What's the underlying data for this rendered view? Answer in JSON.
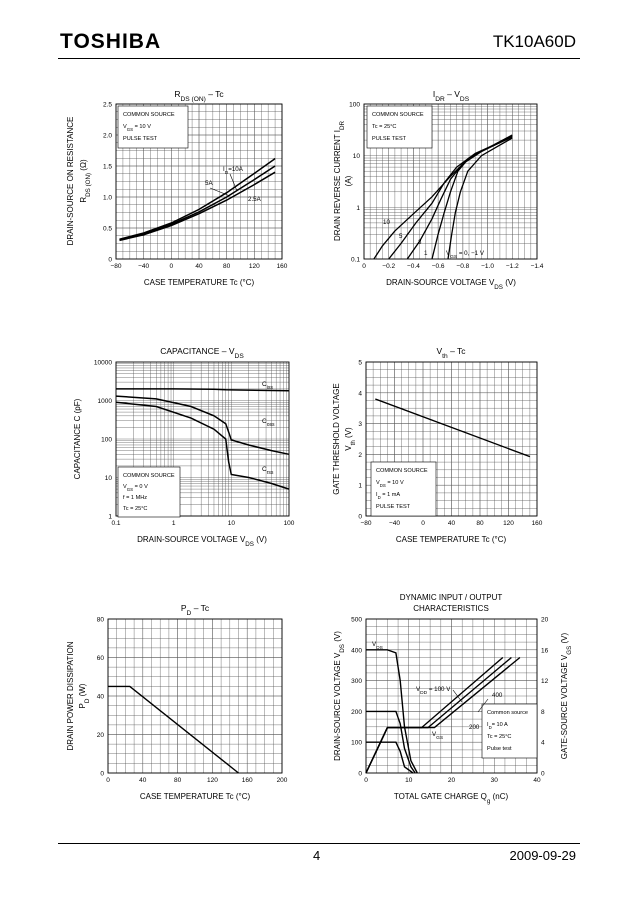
{
  "header": {
    "logo": "TOSHIBA",
    "part_number": "TK10A60D"
  },
  "footer": {
    "page": "4",
    "date": "2009-09-29"
  },
  "chart_data": [
    {
      "id": "rds",
      "type": "line",
      "title": "R<sub>DS (ON)</sub> – Tc",
      "ylabel": "DRAIN-SOURCE ON RESISTANCE",
      "ylabel2": "R<sub>DS (ON)</sub>   (Ω)",
      "xlabel": "CASE TEMPERATURE   Tc   (°C)",
      "xlim": [
        -80,
        160
      ],
      "ylim": [
        0,
        2.5
      ],
      "xticks": [
        -80,
        -40,
        0,
        40,
        80,
        120,
        160
      ],
      "xticklabels": [
        "−80",
        "−40",
        "0",
        "40",
        "80",
        "120",
        "160"
      ],
      "yticks": [
        0,
        0.5,
        1.0,
        1.5,
        2.0,
        2.5
      ],
      "yticklabels": [
        "0",
        "0.5",
        "1.0",
        "1.5",
        "2.0",
        "2.5"
      ],
      "legend": [
        "COMMON SOURCE",
        "V<sub>GS</sub> = 10 V",
        "PULSE TEST"
      ],
      "annotations": [
        "I<sub>D</sub>=10A",
        "5A",
        "2.5A"
      ],
      "series": [
        {
          "name": "10A",
          "x": [
            -75,
            -40,
            0,
            40,
            80,
            120,
            150
          ],
          "y": [
            0.32,
            0.42,
            0.58,
            0.8,
            1.07,
            1.38,
            1.62
          ]
        },
        {
          "name": "5A",
          "x": [
            -75,
            -40,
            0,
            40,
            80,
            120,
            150
          ],
          "y": [
            0.31,
            0.4,
            0.56,
            0.76,
            1.0,
            1.28,
            1.5
          ]
        },
        {
          "name": "2.5A",
          "x": [
            -75,
            -40,
            0,
            40,
            80,
            120,
            150
          ],
          "y": [
            0.3,
            0.39,
            0.54,
            0.73,
            0.95,
            1.2,
            1.4
          ]
        }
      ]
    },
    {
      "id": "idr",
      "type": "line",
      "title": "I<sub>DR</sub> – V<sub>DS</sub>",
      "ylabel": "DRAIN REVERSE CURRENT   I<sub>DR</sub>",
      "ylabel2": "(A)",
      "xlabel": "DRAIN-SOURCE VOLTAGE    V<sub>DS</sub>   (V)",
      "xlim": [
        0,
        -1.4
      ],
      "ylim": [
        0.1,
        100
      ],
      "ylog": true,
      "xticks": [
        0,
        -0.2,
        -0.4,
        -0.6,
        -0.8,
        -1.0,
        -1.2,
        -1.4
      ],
      "xticklabels": [
        "0",
        "−0.2",
        "−0.4",
        "−0.6",
        "−0.8",
        "−1.0",
        "−1.2",
        "−1.4"
      ],
      "yticks": [
        0.1,
        1,
        10,
        100
      ],
      "yticklabels": [
        "0.1",
        "1",
        "10",
        "100"
      ],
      "legend": [
        "COMMON SOURCE",
        "Tc = 25°C",
        "PULSE TEST"
      ],
      "annotations": [
        "10",
        "5",
        "3",
        "1",
        "V<sub>GS</sub> = 0, −1 V"
      ],
      "series": [
        {
          "name": "10",
          "x": [
            -0.08,
            -0.15,
            -0.25,
            -0.4,
            -0.55,
            -0.7,
            -0.85,
            -1.0,
            -1.2
          ],
          "y": [
            0.1,
            0.18,
            0.35,
            0.75,
            1.6,
            4.0,
            9.0,
            14,
            25
          ]
        },
        {
          "name": "5",
          "x": [
            -0.2,
            -0.3,
            -0.42,
            -0.55,
            -0.65,
            -0.75,
            -0.9,
            -1.05,
            -1.2
          ],
          "y": [
            0.1,
            0.2,
            0.5,
            1.2,
            3.0,
            6.0,
            11,
            16,
            25
          ]
        },
        {
          "name": "3",
          "x": [
            -0.35,
            -0.45,
            -0.55,
            -0.62,
            -0.7,
            -0.8,
            -0.95,
            -1.1,
            -1.2
          ],
          "y": [
            0.1,
            0.22,
            0.6,
            1.4,
            3.5,
            7,
            12,
            18,
            24
          ]
        },
        {
          "name": "1",
          "x": [
            -0.55,
            -0.6,
            -0.65,
            -0.7,
            -0.76,
            -0.85,
            -1.0,
            -1.2
          ],
          "y": [
            0.1,
            0.3,
            0.8,
            2.0,
            5.0,
            9.0,
            14,
            23
          ]
        },
        {
          "name": "0, -1 V",
          "x": [
            -0.68,
            -0.71,
            -0.74,
            -0.78,
            -0.84,
            -0.95,
            -1.1,
            -1.2
          ],
          "y": [
            0.1,
            0.3,
            0.8,
            2.0,
            5.0,
            10,
            16,
            22
          ]
        }
      ]
    },
    {
      "id": "cap",
      "type": "line",
      "title": "CAPACITANCE – V<sub>DS</sub>",
      "ylabel": "CAPACITANCE    C    (pF)",
      "xlabel": "DRAIN-SOURCE VOLTAGE    V<sub>DS</sub>    (V)",
      "xlim": [
        0.1,
        100
      ],
      "ylim": [
        1,
        10000
      ],
      "xlog": true,
      "ylog": true,
      "xticks": [
        0.1,
        1,
        10,
        100
      ],
      "xticklabels": [
        "0.1",
        "1",
        "10",
        "100"
      ],
      "yticks": [
        1,
        10,
        100,
        1000,
        10000
      ],
      "yticklabels": [
        "1",
        "10",
        "100",
        "1000",
        "10000"
      ],
      "legend": [
        "COMMON SOURCE",
        "V<sub>GS</sub> = 0 V",
        "f = 1 MHz",
        "Tc = 25°C"
      ],
      "series": [
        {
          "name": "C<sub>iss</sub>",
          "x": [
            0.1,
            1,
            5,
            8,
            10,
            100
          ],
          "y": [
            2000,
            2000,
            1950,
            1900,
            1880,
            1800
          ]
        },
        {
          "name": "C<sub>oss</sub>",
          "x": [
            0.1,
            0.5,
            2,
            5,
            8,
            9,
            10,
            20,
            50,
            100
          ],
          "y": [
            1300,
            1100,
            700,
            400,
            250,
            150,
            95,
            70,
            50,
            40
          ]
        },
        {
          "name": "C<sub>rss</sub>",
          "x": [
            0.1,
            0.5,
            2,
            5,
            8,
            9,
            10,
            20,
            50,
            100
          ],
          "y": [
            900,
            700,
            350,
            180,
            100,
            25,
            12,
            10,
            7,
            5
          ]
        }
      ]
    },
    {
      "id": "vth",
      "type": "line",
      "title": "V<sub>th</sub> – Tc",
      "ylabel": "GATE THRESHOLD VOLTAGE",
      "ylabel2": "V<sub>th</sub>   (V)",
      "xlabel": "CASE TEMPERATURE   Tc   (°C)",
      "xlim": [
        -80,
        160
      ],
      "ylim": [
        0,
        5
      ],
      "xticks": [
        -80,
        -40,
        0,
        40,
        80,
        120,
        160
      ],
      "xticklabels": [
        "−80",
        "−40",
        "0",
        "40",
        "80",
        "120",
        "160"
      ],
      "yticks": [
        0,
        1,
        2,
        3,
        4,
        5
      ],
      "yticklabels": [
        "0",
        "1",
        "2",
        "3",
        "4",
        "5"
      ],
      "legend": [
        "COMMON SOURCE",
        "V<sub>DS</sub> = 10 V",
        "I<sub>D</sub> = 1 mA",
        "PULSE TEST"
      ],
      "series": [
        {
          "name": "Vth",
          "x": [
            -67,
            150
          ],
          "y": [
            3.8,
            1.93
          ]
        }
      ]
    },
    {
      "id": "pd",
      "type": "line",
      "title": "P<sub>D</sub> – Tc",
      "ylabel": "DRAIN POWER DISSIPATION",
      "ylabel2": "P<sub>D</sub>   (W)",
      "xlabel": "CASE TEMPERATURE   Tc   (°C)",
      "xlim": [
        0,
        200
      ],
      "ylim": [
        0,
        80
      ],
      "xticks": [
        0,
        40,
        80,
        120,
        160,
        200
      ],
      "xticklabels": [
        "0",
        "40",
        "80",
        "120",
        "160",
        "200"
      ],
      "yticks": [
        0,
        20,
        40,
        60,
        80
      ],
      "yticklabels": [
        "0",
        "20",
        "40",
        "60",
        "80"
      ],
      "series": [
        {
          "name": "PD",
          "x": [
            0,
            25,
            150
          ],
          "y": [
            45,
            45,
            0
          ]
        }
      ]
    },
    {
      "id": "qg",
      "type": "line",
      "title": "DYNAMIC INPUT / OUTPUT",
      "title2": "CHARACTERISTICS",
      "ylabel": "DRAIN-SOURCE VOLTAGE    V<sub>DS</sub>    (V)",
      "ylabel_right": "GATE-SOURCE VOLTAGE    V<sub>GS</sub>    (V)",
      "xlabel": "TOTAL GATE CHARGE    Q<sub>g</sub>    (nC)",
      "xlim": [
        0,
        40
      ],
      "ylim": [
        0,
        500
      ],
      "ylim_right": [
        0,
        20
      ],
      "xticks": [
        0,
        10,
        20,
        30,
        40
      ],
      "xticklabels": [
        "0",
        "10",
        "20",
        "30",
        "40"
      ],
      "yticks": [
        0,
        100,
        200,
        300,
        400,
        500
      ],
      "yticklabels": [
        "0",
        "100",
        "200",
        "300",
        "400",
        "500"
      ],
      "yticks_right": [
        0,
        4,
        8,
        12,
        16,
        20
      ],
      "yticklabels_right": [
        "0",
        "4",
        "8",
        "12",
        "16",
        "20"
      ],
      "legend": [
        "Common source",
        "I<sub>D</sub>= 10 A",
        "Tc = 25°C",
        "Pulse test"
      ],
      "annotations": [
        "V<sub>DS</sub>",
        "V<sub>DD</sub> = 100 V",
        "400",
        "200",
        "V<sub>GS</sub>"
      ],
      "vds_series": [
        {
          "name": "100 V",
          "x": [
            0,
            7,
            8,
            9,
            11
          ],
          "y": [
            100,
            100,
            70,
            20,
            0
          ]
        },
        {
          "name": "200 V",
          "x": [
            0,
            7,
            8,
            9,
            10.5,
            11.5
          ],
          "y": [
            200,
            200,
            160,
            80,
            20,
            0
          ]
        },
        {
          "name": "400 V",
          "x": [
            0,
            5,
            7,
            8,
            9,
            10.5,
            12
          ],
          "y": [
            400,
            400,
            390,
            300,
            150,
            40,
            0
          ]
        }
      ],
      "vgs_series": [
        {
          "name": "100 V",
          "x": [
            0,
            5,
            13,
            32
          ],
          "y": [
            0,
            5.9,
            5.9,
            15
          ]
        },
        {
          "name": "200 V",
          "x": [
            0,
            5,
            14.5,
            34
          ],
          "y": [
            0,
            5.9,
            5.9,
            15
          ]
        },
        {
          "name": "400 V",
          "x": [
            0,
            5,
            16,
            36
          ],
          "y": [
            0,
            5.9,
            5.9,
            15
          ]
        }
      ]
    }
  ]
}
